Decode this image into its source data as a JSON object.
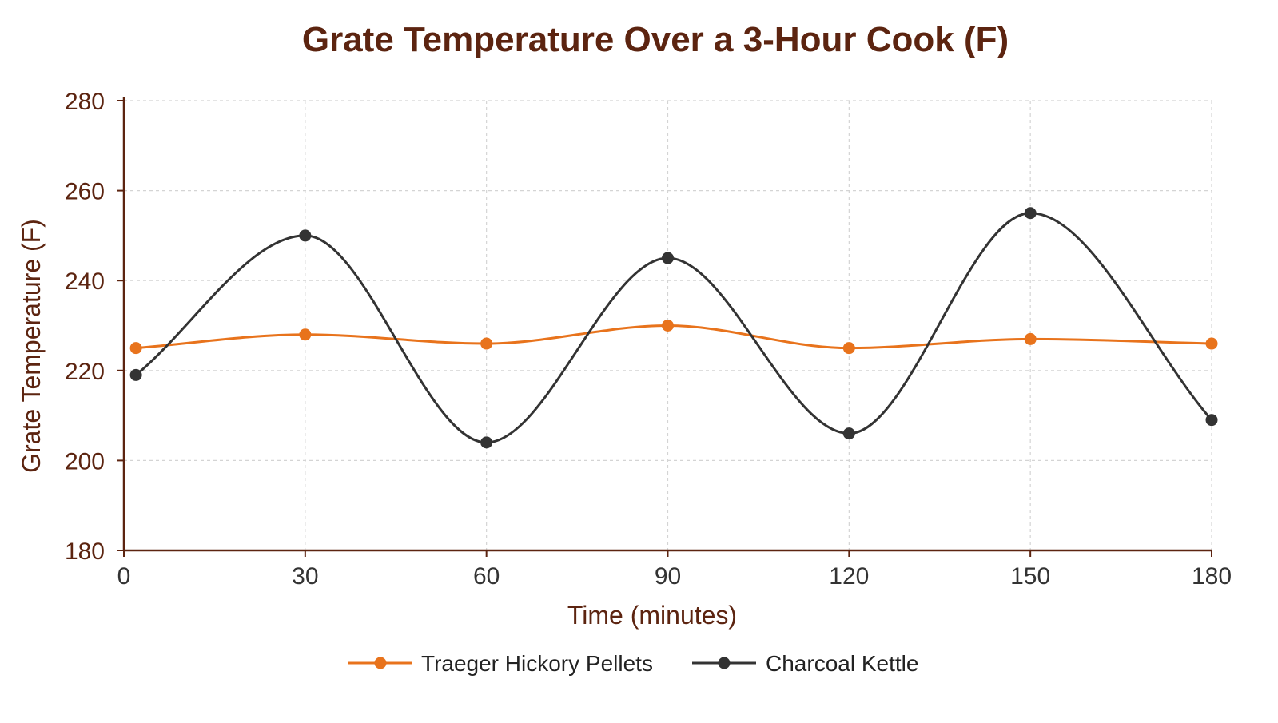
{
  "chart_data": {
    "type": "line",
    "title": "Grate Temperature Over a 3-Hour Cook (F)",
    "xlabel": "Time (minutes)",
    "ylabel": "Grate Temperature (F)",
    "x": [
      2,
      30,
      60,
      90,
      120,
      150,
      180
    ],
    "xlim": [
      0,
      180
    ],
    "ylim": [
      180,
      280
    ],
    "xticks": [
      0,
      30,
      60,
      90,
      120,
      150,
      180
    ],
    "yticks": [
      180,
      200,
      220,
      240,
      260,
      280
    ],
    "grid": true,
    "legend_position": "bottom",
    "series": [
      {
        "name": "Traeger Hickory Pellets",
        "color": "#e8731c",
        "values": [
          225,
          228,
          226,
          230,
          225,
          227,
          226
        ]
      },
      {
        "name": "Charcoal Kettle",
        "color": "#333333",
        "values": [
          219,
          250,
          204,
          245,
          206,
          255,
          209
        ]
      }
    ]
  },
  "colors": {
    "title": "#5c2410",
    "axis": "#5c2410",
    "tick": "#333333",
    "grid": "#d4d4d4"
  }
}
